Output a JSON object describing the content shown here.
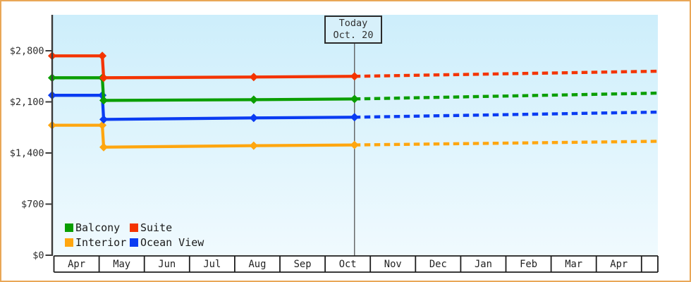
{
  "frame": {
    "border_color": "#e9a757",
    "plot_bg_top": "#cdeefb",
    "plot_bg_bottom": "#f0fafe",
    "axis_color": "#3b3b3b",
    "grid_box_color": "#1e1e1e",
    "today_line_color": "#555555",
    "text_color": "#2e2e2e"
  },
  "today_marker": {
    "line1": "Today",
    "line2": "Oct. 20",
    "month_offset": 6.65
  },
  "chart_data": {
    "type": "line",
    "x_axis": {
      "unit": "month",
      "labels": [
        "Apr",
        "May",
        "Jun",
        "Jul",
        "Aug",
        "Sep",
        "Oct",
        "Nov",
        "Dec",
        "Jan",
        "Feb",
        "Mar",
        "Apr"
      ]
    },
    "y_axis": {
      "ticks": [
        {
          "label": "$2,800",
          "value": 2800
        },
        {
          "label": "$2,100",
          "value": 2100
        },
        {
          "label": "$1,400",
          "value": 1400
        },
        {
          "label": "$700",
          "value": 700
        },
        {
          "label": "$0",
          "value": 0
        }
      ],
      "range": [
        0,
        3290
      ]
    },
    "legend_position": "bottom-left",
    "forecast_style": "dashed",
    "series": [
      {
        "name": "Balcony",
        "color": "#0a9e00",
        "solid": [
          {
            "m": -0.04,
            "price": 2430
          },
          {
            "m": 1.07,
            "price": 2430
          },
          {
            "m": 1.1,
            "price": 2120
          },
          {
            "m": 4.42,
            "price": 2130
          },
          {
            "m": 6.65,
            "price": 2140
          }
        ],
        "forecast": [
          {
            "m": 6.65,
            "price": 2140
          },
          {
            "m": 13.36,
            "price": 2220
          }
        ]
      },
      {
        "name": "Suite",
        "color": "#f43400",
        "solid": [
          {
            "m": -0.04,
            "price": 2730
          },
          {
            "m": 1.07,
            "price": 2730
          },
          {
            "m": 1.1,
            "price": 2430
          },
          {
            "m": 4.42,
            "price": 2440
          },
          {
            "m": 6.65,
            "price": 2450
          }
        ],
        "forecast": [
          {
            "m": 6.65,
            "price": 2450
          },
          {
            "m": 13.36,
            "price": 2520
          }
        ]
      },
      {
        "name": "Interior",
        "color": "#ffa60f",
        "solid": [
          {
            "m": -0.04,
            "price": 1780
          },
          {
            "m": 1.07,
            "price": 1780
          },
          {
            "m": 1.1,
            "price": 1480
          },
          {
            "m": 4.42,
            "price": 1500
          },
          {
            "m": 6.65,
            "price": 1510
          }
        ],
        "forecast": [
          {
            "m": 6.65,
            "price": 1510
          },
          {
            "m": 13.36,
            "price": 1560
          }
        ]
      },
      {
        "name": "Ocean View",
        "color": "#0a3cf2",
        "solid": [
          {
            "m": -0.04,
            "price": 2190
          },
          {
            "m": 1.07,
            "price": 2190
          },
          {
            "m": 1.1,
            "price": 1860
          },
          {
            "m": 4.42,
            "price": 1880
          },
          {
            "m": 6.65,
            "price": 1890
          }
        ],
        "forecast": [
          {
            "m": 6.65,
            "price": 1890
          },
          {
            "m": 13.36,
            "price": 1960
          }
        ]
      }
    ]
  }
}
